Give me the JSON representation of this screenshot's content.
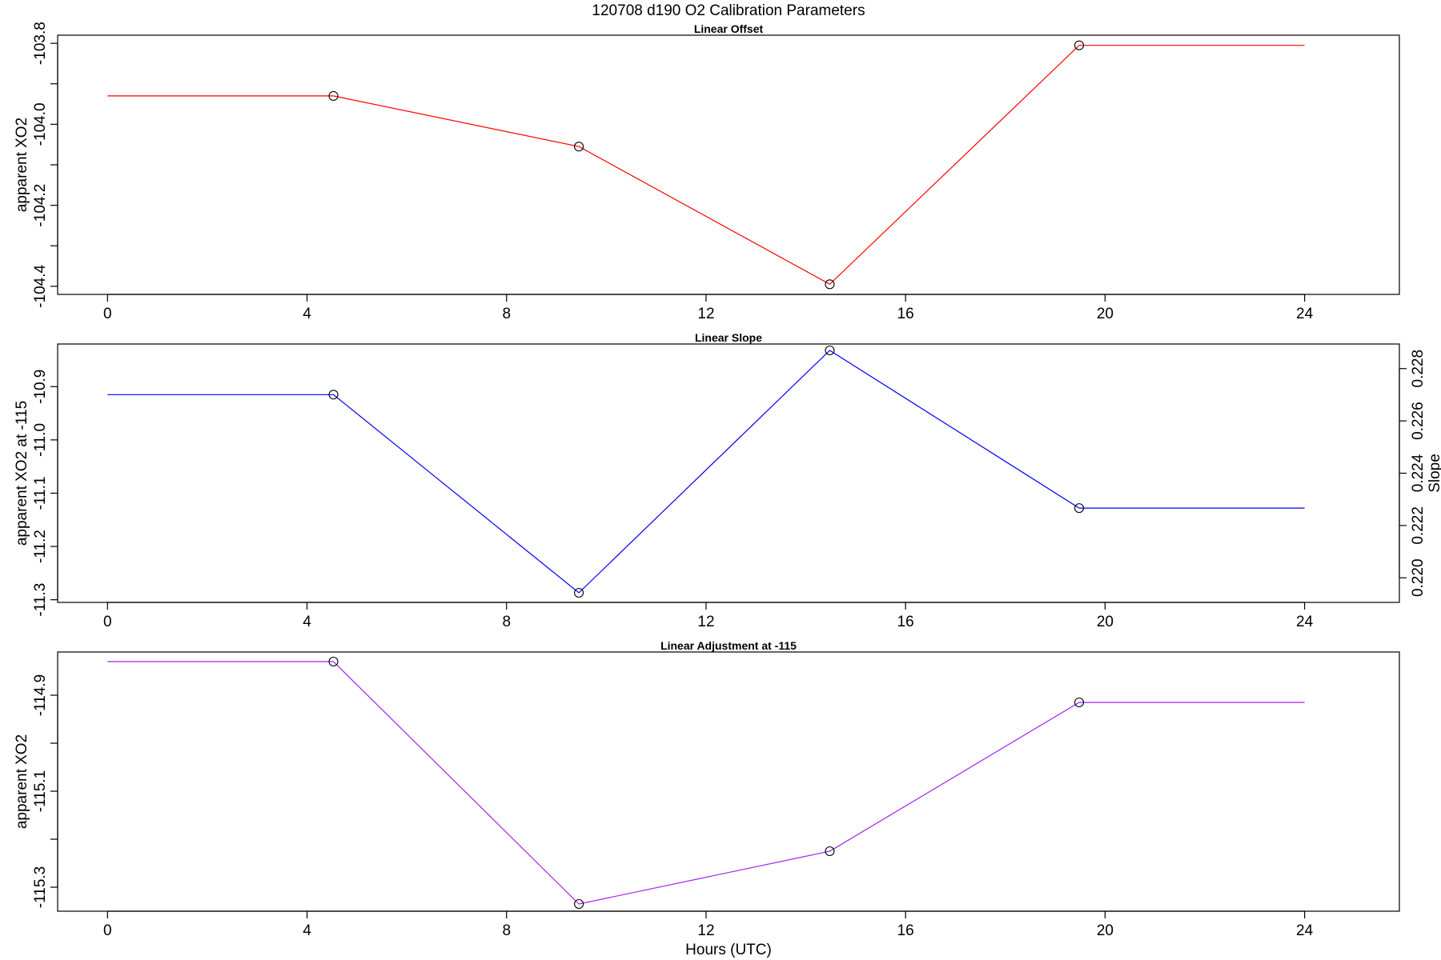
{
  "figure": {
    "title": "120708   d190   O2 Calibration Parameters",
    "xlabel": "Hours (UTC)"
  },
  "chart_data": [
    {
      "type": "line",
      "title": "Linear Offset",
      "xlabel": "",
      "ylabel": "apparent XO2",
      "xlim": [
        -1,
        25.9
      ],
      "ylim": [
        -104.42,
        -103.78
      ],
      "xticks": [
        0,
        4,
        8,
        12,
        16,
        20,
        24
      ],
      "yticks": [
        -104.4,
        -104.3,
        -104.2,
        -104.1,
        -104.0,
        -103.9,
        -103.8
      ],
      "ytick_labels": [
        "-104.4",
        "",
        "-104.2",
        "",
        "-104.0",
        "",
        "-103.8"
      ],
      "grid": false,
      "series": [
        {
          "color": "#ff0000",
          "x": [
            0,
            4.53,
            9.45,
            14.48,
            19.48,
            24
          ],
          "y": [
            -103.93,
            -103.93,
            -104.055,
            -104.395,
            -103.805,
            -103.805
          ],
          "markers": [
            1,
            2,
            3,
            4
          ]
        }
      ]
    },
    {
      "type": "line",
      "title": "Linear Slope",
      "xlabel": "",
      "ylabel": "apparent XO2 at -115",
      "y2label": "Slope",
      "xlim": [
        -1,
        25.9
      ],
      "ylim": [
        -11.305,
        -10.82
      ],
      "xticks": [
        0,
        4,
        8,
        12,
        16,
        20,
        24
      ],
      "yticks": [
        -11.3,
        -11.2,
        -11.1,
        -11.0,
        -10.9
      ],
      "ytick_labels": [
        "-11.3",
        "-11.2",
        "-11.1",
        "-11.0",
        "-10.9"
      ],
      "y2ticks": [
        0.22,
        0.222,
        0.224,
        0.226,
        0.228
      ],
      "y2tick_labels": [
        "0.220",
        "0.222",
        "0.224",
        "0.226",
        "0.228"
      ],
      "y2lim": [
        0.21906,
        0.22894
      ],
      "grid": false,
      "series": [
        {
          "color": "#0000ff",
          "x": [
            0,
            4.53,
            9.45,
            14.48,
            19.48,
            24
          ],
          "y": [
            -10.915,
            -10.915,
            -11.287,
            -10.832,
            -11.128,
            -11.128
          ],
          "markers": [
            1,
            2,
            3,
            4
          ]
        }
      ]
    },
    {
      "type": "line",
      "title": "Linear Adjustment at -115",
      "xlabel": "Hours (UTC)",
      "ylabel": "apparent XO2",
      "xlim": [
        -1,
        25.9
      ],
      "ylim": [
        -115.35,
        -114.81
      ],
      "xticks": [
        0,
        4,
        8,
        12,
        16,
        20,
        24
      ],
      "yticks": [
        -115.3,
        -115.2,
        -115.1,
        -115.0,
        -114.9
      ],
      "ytick_labels": [
        "-115.3",
        "",
        "-115.1",
        "",
        "-114.9"
      ],
      "grid": false,
      "series": [
        {
          "color": "#a020f0",
          "x": [
            0,
            4.53,
            9.45,
            14.48,
            19.48,
            24
          ],
          "y": [
            -114.83,
            -114.83,
            -115.335,
            -115.225,
            -114.915,
            -114.915
          ],
          "markers": [
            1,
            2,
            3,
            4
          ]
        }
      ]
    }
  ]
}
